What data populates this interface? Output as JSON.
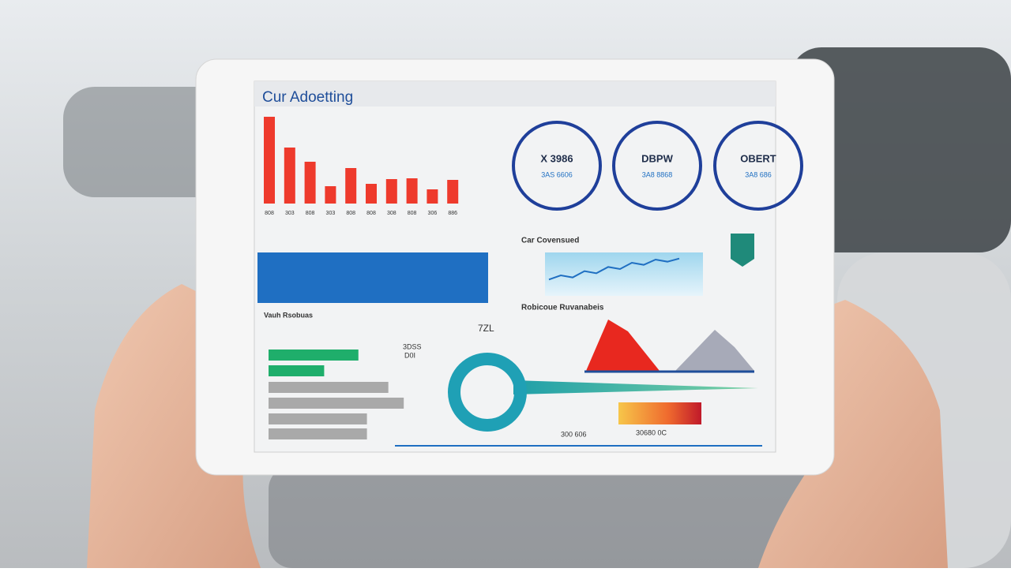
{
  "header": {
    "title": "Cur Adoetting"
  },
  "bar_chart": {
    "values": [
      110,
      71,
      53,
      22,
      45,
      25,
      31,
      32,
      18,
      30
    ],
    "color": "#ee3a2c",
    "ylim": [
      0,
      110
    ],
    "labels": [
      "808",
      "303",
      "808",
      "303",
      "808",
      "808",
      "308",
      "808",
      "306",
      "886"
    ]
  },
  "gauges": [
    {
      "value": "X 3986",
      "sub": "3AS 6606"
    },
    {
      "value": "DBPW",
      "sub": "3A8 8868"
    },
    {
      "value": "OBERT",
      "sub": "3A8 686"
    }
  ],
  "line_panel": {
    "title": "Car Covensued",
    "values": [
      8,
      12,
      10,
      16,
      14,
      20,
      18,
      24,
      22,
      27,
      25,
      28
    ],
    "ylim": [
      0,
      30
    ]
  },
  "area_panel": {
    "title": "Robicoue Ruvanabeis"
  },
  "hbar_panel": {
    "title": "Vauh Rsobuas",
    "center": [
      "3DSS",
      "D0I"
    ],
    "tag": "7ZL",
    "values": [
      105,
      65,
      140,
      158,
      115,
      115
    ],
    "colors": [
      "#1fae6b",
      "#1fae6b",
      "#a9a9a9",
      "#a9a9a9",
      "#a9a9a9",
      "#a9a9a9"
    ],
    "xlim": [
      0,
      180
    ]
  },
  "footer": {
    "left": "300 606",
    "right": "30680 0C"
  }
}
